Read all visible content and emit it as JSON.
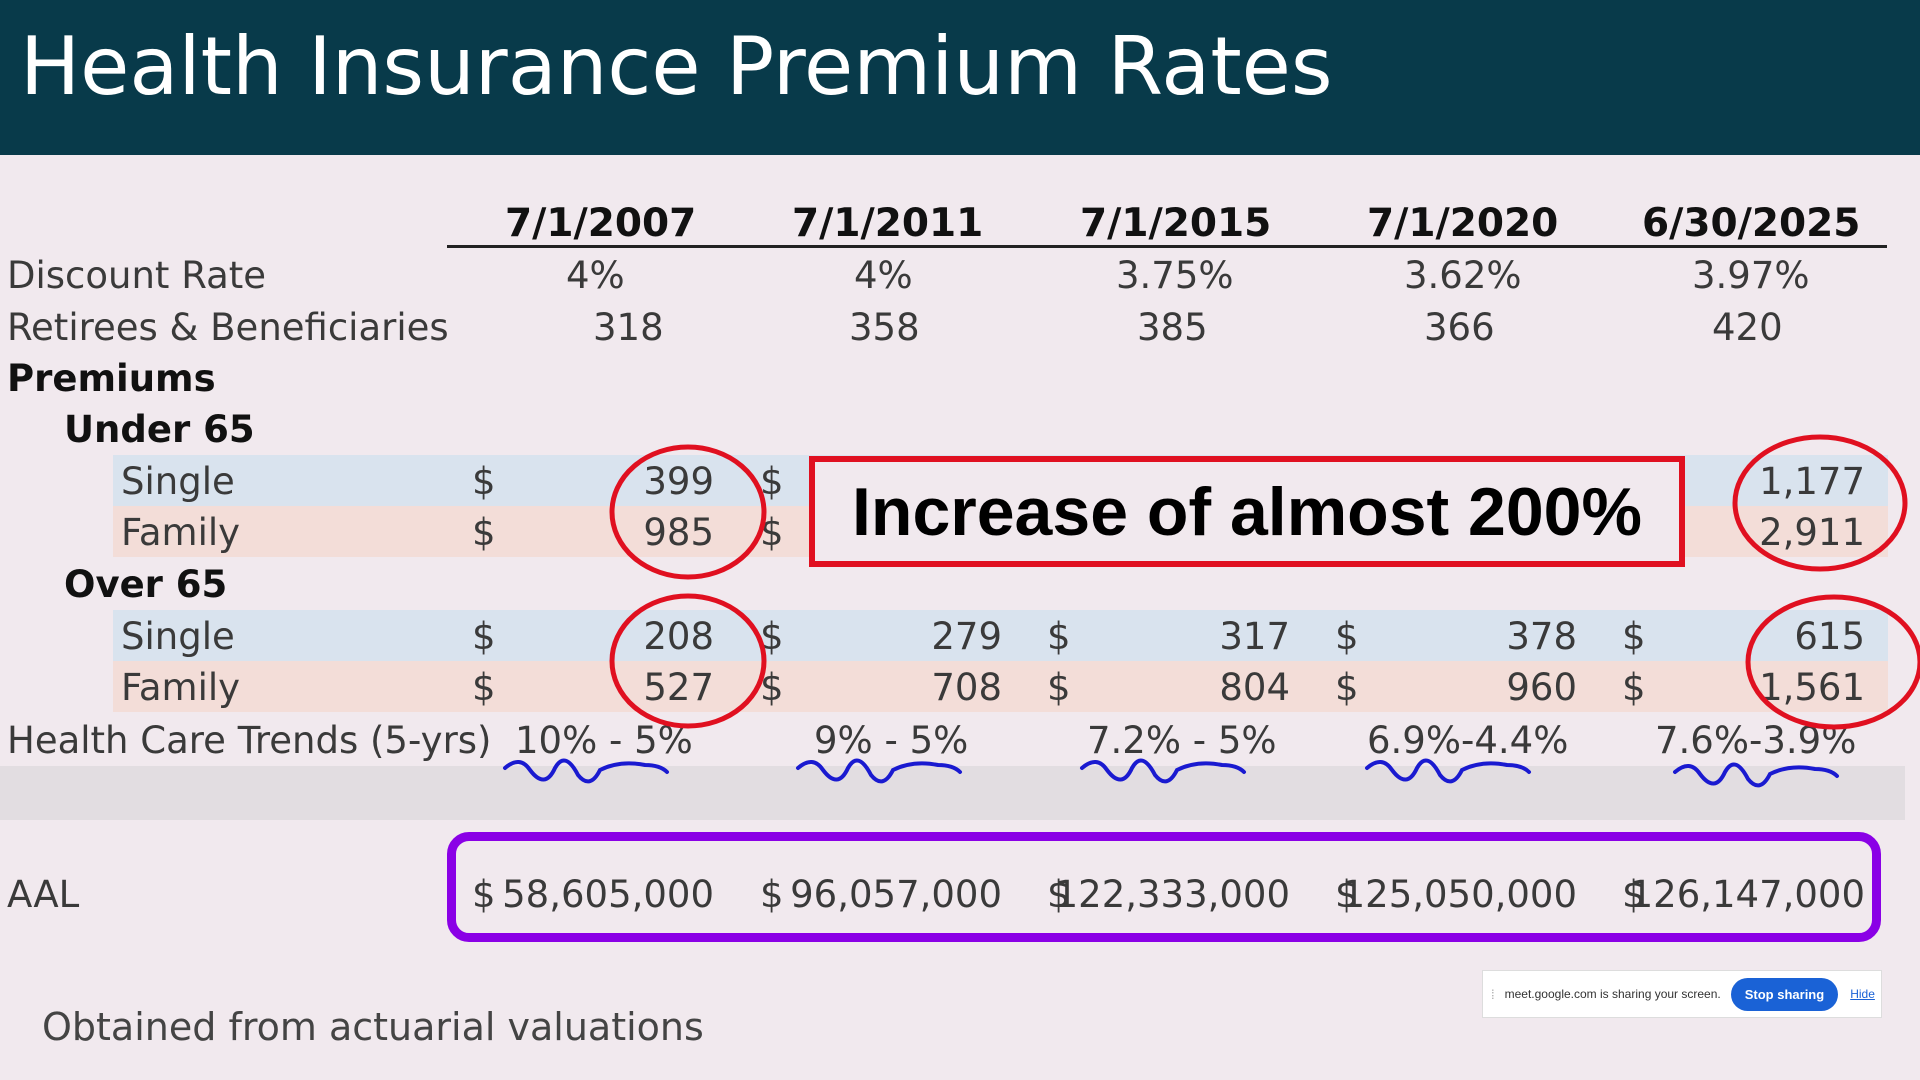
{
  "slide": {
    "title": "Health Insurance Premium Rates",
    "footnote": "Obtained from actuarial valuations",
    "callout": "Increase of almost 200%"
  },
  "table": {
    "dates": [
      "7/1/2007",
      "7/1/2011",
      "7/1/2015",
      "7/1/2020",
      "6/30/2025"
    ],
    "discount_rate": {
      "label": "Discount Rate",
      "values": [
        "4%",
        "4%",
        "3.75%",
        "3.62%",
        "3.97%"
      ]
    },
    "retirees": {
      "label": "Retirees & Beneficiaries",
      "values": [
        "318",
        "358",
        "385",
        "366",
        "420"
      ]
    },
    "premiums_label": "Premiums",
    "currency": "$",
    "under65": {
      "label": "Under 65",
      "single": {
        "label": "Single",
        "values": [
          "399",
          "",
          "",
          "",
          "1,177"
        ]
      },
      "family": {
        "label": "Family",
        "values": [
          "985",
          "",
          "",
          "",
          "2,911"
        ]
      }
    },
    "over65": {
      "label": "Over 65",
      "single": {
        "label": "Single",
        "values": [
          "208",
          "279",
          "317",
          "378",
          "615"
        ]
      },
      "family": {
        "label": "Family",
        "values": [
          "527",
          "708",
          "804",
          "960",
          "1,561"
        ]
      }
    },
    "trends": {
      "label": "Health Care Trends (5-yrs)",
      "values": [
        "10% - 5%",
        "9% - 5%",
        "7.2% - 5%",
        "6.9%-4.4%",
        "7.6%-3.9%"
      ]
    },
    "aal": {
      "label": "AAL",
      "values": [
        "58,605,000",
        "96,057,000",
        "122,333,000",
        "125,050,000",
        "126,147,000"
      ]
    }
  },
  "share_bar": {
    "text": "meet.google.com is sharing your screen.",
    "stop_label": "Stop sharing",
    "hide_label": "Hide"
  },
  "annotation_colors": {
    "circles": "#e01020",
    "underlines": "#1a1ad0",
    "aal_box": "#8a00e6",
    "title_bar": "#083a4a"
  }
}
